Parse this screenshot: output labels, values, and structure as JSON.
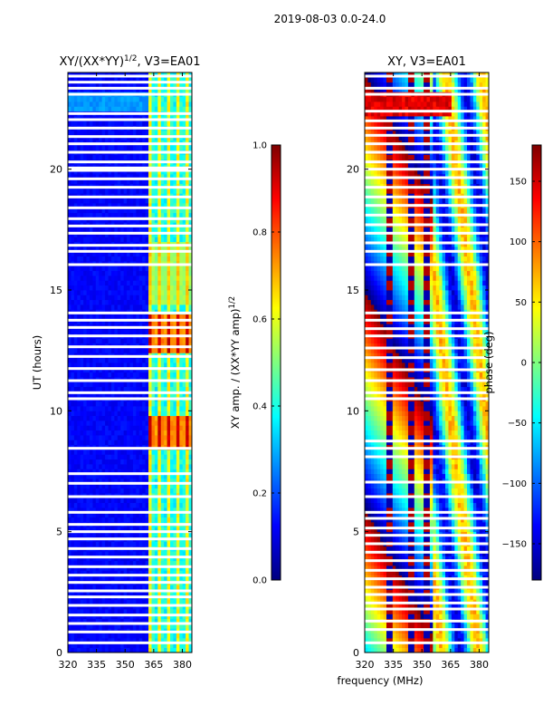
{
  "suptitle": "2019-08-03 0.0-24.0",
  "colors": {
    "jet": [
      "#00007f",
      "#0000ff",
      "#007fff",
      "#00ffff",
      "#7fff7f",
      "#ffff00",
      "#ff7f00",
      "#ff0000",
      "#7f0000"
    ],
    "gap": "#ffffff",
    "axis": "#000000"
  },
  "chart_data": [
    {
      "id": "amp",
      "type": "heatmap",
      "title": "XY/(XX*YY)",
      "title_exp": "1/2",
      "title_suffix": ", V3=EA01",
      "xlabel": "",
      "ylabel": "UT (hours)",
      "xlim": [
        320,
        385
      ],
      "ylim": [
        0,
        24
      ],
      "xticks": [
        320,
        335,
        350,
        365,
        380
      ],
      "yticks": [
        0,
        5,
        10,
        15,
        20
      ],
      "colorbar": {
        "label": "XY amp. / (XX*YY amp)",
        "label_exp": "1/2",
        "range": [
          0.0,
          1.0
        ],
        "ticks": [
          "0.0",
          "0.2",
          "0.4",
          "0.6",
          "0.8",
          "1.0"
        ]
      },
      "features": {
        "low_band_mhz": [
          320,
          362
        ],
        "low_band_level": 0.1,
        "high_band_mhz": [
          362,
          385
        ],
        "high_band_level": 0.45,
        "bright_hours": [
          [
            8.5,
            9.8
          ],
          [
            12.3,
            14.0
          ]
        ],
        "bright_level": 0.85,
        "mid_hours": [
          [
            14.5,
            17.0
          ]
        ],
        "mid_level": 0.6,
        "low_band_bright_hour": 22.8
      },
      "gaps_hours": [
        0.4,
        0.85,
        1.2,
        1.55,
        1.95,
        2.3,
        2.55,
        2.9,
        3.2,
        3.55,
        3.95,
        4.3,
        4.7,
        5.0,
        5.3,
        5.8,
        6.45,
        7.0,
        7.4,
        8.45,
        10.5,
        10.75,
        11.25,
        11.75,
        12.25,
        12.65,
        13.1,
        13.45,
        13.75,
        14.05,
        16.05,
        16.6,
        16.85,
        17.35,
        17.65,
        17.95,
        18.4,
        18.85,
        19.25,
        19.6,
        19.95,
        20.05,
        20.3,
        20.7,
        21.05,
        21.35,
        21.7,
        22.05,
        22.3,
        23.1,
        23.35,
        23.6,
        23.85
      ]
    },
    {
      "id": "phase",
      "type": "heatmap",
      "title": "XY, V3=EA01",
      "xlabel": "frequency (MHz)",
      "ylabel": "",
      "xlim": [
        320,
        385
      ],
      "ylim": [
        0,
        24
      ],
      "xticks": [
        320,
        335,
        350,
        365,
        380
      ],
      "yticks": [
        0,
        5,
        10,
        15,
        20
      ],
      "colorbar": {
        "label": "phase (deg)",
        "range": [
          -180,
          180
        ],
        "ticks": [
          "−150",
          "−100",
          "−50",
          "0",
          "50",
          "100",
          "150"
        ],
        "tick_values": [
          -150,
          -100,
          -50,
          0,
          50,
          100,
          150
        ]
      },
      "features": {
        "stripe_mhz": [
          333,
          345,
          352
        ],
        "high_band_mhz": [
          356,
          385
        ],
        "red_band_hours": [
          [
            22.3,
            23.2
          ]
        ]
      },
      "gaps_hours": [
        0.4,
        0.95,
        1.3,
        1.8,
        2.05,
        2.4,
        2.7,
        3.05,
        3.4,
        3.8,
        4.15,
        4.5,
        4.85,
        5.15,
        5.55,
        5.8,
        6.45,
        7.05,
        8.1,
        8.45,
        8.75,
        10.5,
        10.75,
        11.25,
        11.7,
        12.2,
        12.6,
        13.1,
        13.4,
        13.75,
        14.05,
        16.05,
        16.6,
        16.95,
        17.35,
        17.7,
        18.1,
        18.5,
        18.85,
        19.25,
        19.65,
        20.0,
        20.3,
        20.7,
        21.05,
        21.4,
        21.7,
        22.0,
        22.4,
        23.1,
        23.35,
        23.85
      ]
    }
  ]
}
